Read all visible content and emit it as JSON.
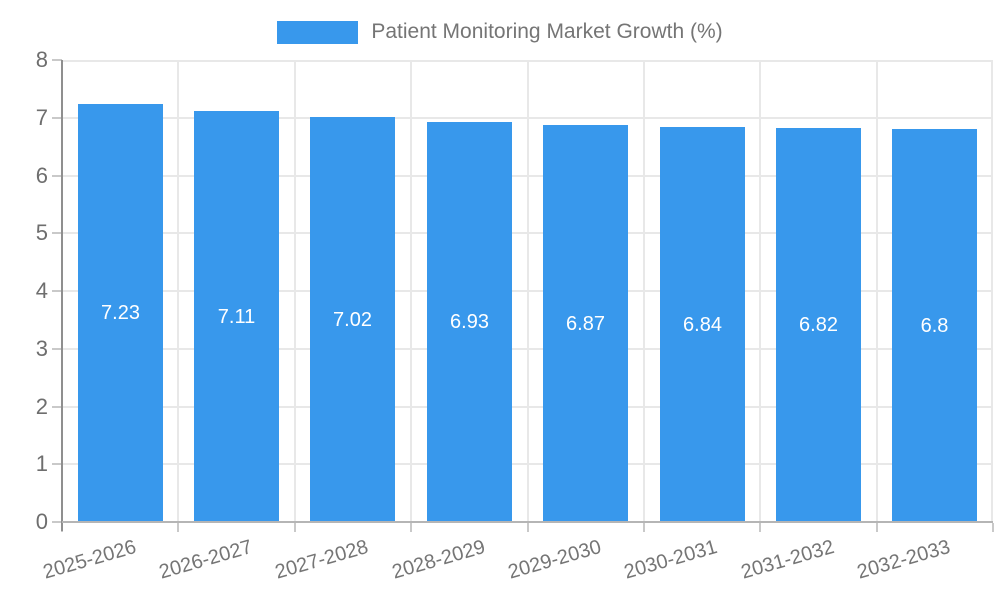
{
  "legend": {
    "label": "Patient Monitoring Market Growth (%)"
  },
  "chart_data": {
    "type": "bar",
    "title": "Patient Monitoring Market Growth (%)",
    "categories": [
      "2025-2026",
      "2026-2027",
      "2027-2028",
      "2028-2029",
      "2029-2030",
      "2030-2031",
      "2031-2032",
      "2032-2033"
    ],
    "values": [
      7.23,
      7.11,
      7.02,
      6.93,
      6.87,
      6.84,
      6.82,
      6.8
    ],
    "value_labels": [
      "7.23",
      "7.11",
      "7.02",
      "6.93",
      "6.87",
      "6.84",
      "6.82",
      "6.8"
    ],
    "xlabel": "",
    "ylabel": "",
    "ylim": [
      0,
      8
    ],
    "yticks": [
      0,
      1,
      2,
      3,
      4,
      5,
      6,
      7,
      8
    ],
    "grid": true,
    "legend_position": "top-center",
    "bar_color": "#3898EC",
    "value_label_color": "#ffffff"
  },
  "colors": {
    "accent_blue": "#3898EC",
    "gridline": "#e8e8e8",
    "axis_line": "#8f8f8f",
    "text_gray": "#757575",
    "background": "#ffffff"
  }
}
